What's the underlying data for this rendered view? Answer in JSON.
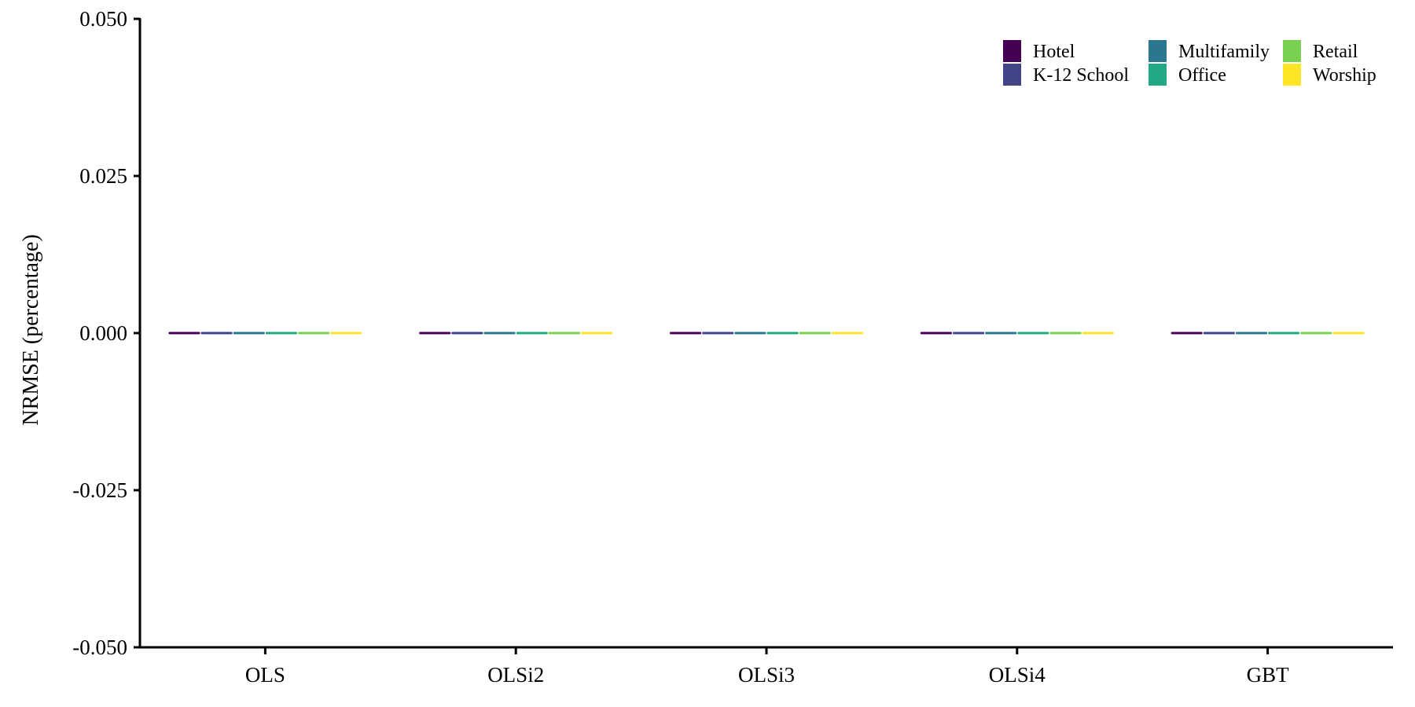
{
  "chart_data": {
    "type": "bar",
    "title": "",
    "xlabel": "",
    "ylabel": "NRMSE (percentage)",
    "ylim": [
      -0.05,
      0.05
    ],
    "yticks": [
      -0.05,
      -0.025,
      0.0,
      0.025,
      0.05
    ],
    "ytick_labels": [
      "-0.050",
      "-0.025",
      "0.000",
      "0.025",
      "0.050"
    ],
    "categories": [
      "OLS",
      "OLSi2",
      "OLSi3",
      "OLSi4",
      "GBT"
    ],
    "grid": false,
    "legend_position": "top-right",
    "series": [
      {
        "name": "Hotel",
        "color": "#440154",
        "values": [
          0,
          0,
          0,
          0,
          0
        ]
      },
      {
        "name": "K-12 School",
        "color": "#414487",
        "values": [
          0,
          0,
          0,
          0,
          0
        ]
      },
      {
        "name": "Multifamily",
        "color": "#2A788E",
        "values": [
          0,
          0,
          0,
          0,
          0
        ]
      },
      {
        "name": "Office",
        "color": "#22A884",
        "values": [
          0,
          0,
          0,
          0,
          0
        ]
      },
      {
        "name": "Retail",
        "color": "#7AD151",
        "values": [
          0,
          0,
          0,
          0,
          0
        ]
      },
      {
        "name": "Worship",
        "color": "#FDE725",
        "values": [
          0,
          0,
          0,
          0,
          0
        ]
      }
    ],
    "legend_order": [
      "Hotel",
      "K-12 School",
      "Multifamily",
      "Office",
      "Retail",
      "Worship"
    ]
  }
}
